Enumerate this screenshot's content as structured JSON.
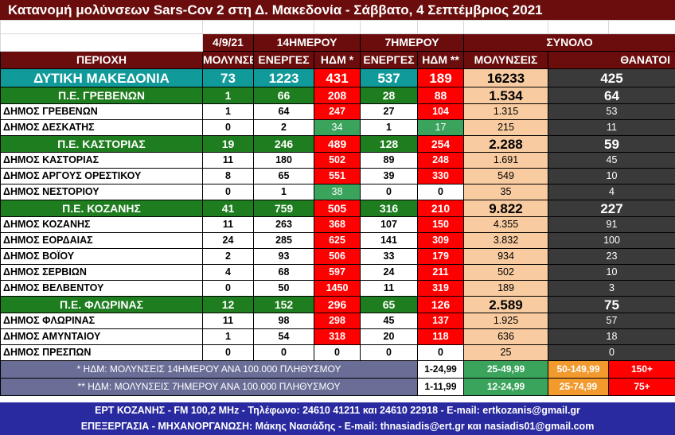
{
  "title": "Κατανομή μολύνσεων Sars-Cov 2 στη Δ. Μακεδονία - Σάββατο, 4 Σεπτέμβριος 2021",
  "header": {
    "date": "4/9/21",
    "days14": "14ΗΜΕΡΟΥ",
    "days7": "7ΗΜΕΡΟΥ",
    "total": "ΣΥΝΟΛΟ",
    "region": "ΠΕΡΙΟΧΗ",
    "infections": "ΜΟΛΥΝΣΕΙΣ",
    "active14": "ΕΝΕΡΓΕΣ",
    "hdm14": "ΗΔΜ *",
    "active7": "ΕΝΕΡΓΕΣ",
    "hdm7": "ΗΔΜ **",
    "total_infections": "ΜΟΛΥΝΣΕΙΣ",
    "deaths": "ΘΑΝΑΤΟΙ"
  },
  "rows": [
    {
      "type": "total",
      "name": "ΔΥΤΙΚΗ ΜΑΚΕΔΟΝΙΑ",
      "new": "73",
      "a14": "1223",
      "h14": "431",
      "a7": "537",
      "h7": "189",
      "tot": "16233",
      "dead": "425",
      "h14c": "red",
      "h7c": "red"
    },
    {
      "type": "pe",
      "name": "Π.Ε. ΓΡΕΒΕΝΩΝ",
      "new": "1",
      "a14": "66",
      "h14": "208",
      "a7": "28",
      "h7": "88",
      "tot": "1.534",
      "dead": "64",
      "h14c": "red",
      "h7c": "red"
    },
    {
      "type": "dim",
      "name": "ΔΗΜΟΣ ΓΡΕΒΕΝΩΝ",
      "new": "1",
      "a14": "64",
      "h14": "247",
      "a7": "27",
      "h7": "104",
      "tot": "1.315",
      "dead": "53",
      "h14c": "red",
      "h7c": "red"
    },
    {
      "type": "dim",
      "name": "ΔΗΜΟΣ ΔΕΣΚΑΤΗΣ",
      "new": "0",
      "a14": "2",
      "h14": "34",
      "a7": "1",
      "h7": "17",
      "tot": "215",
      "dead": "11",
      "h14c": "green",
      "h7c": "green"
    },
    {
      "type": "pe",
      "name": "Π.Ε. ΚΑΣΤΟΡΙΑΣ",
      "new": "19",
      "a14": "246",
      "h14": "489",
      "a7": "128",
      "h7": "254",
      "tot": "2.288",
      "dead": "59",
      "h14c": "red",
      "h7c": "red"
    },
    {
      "type": "dim",
      "name": "ΔΗΜΟΣ ΚΑΣΤΟΡΙΑΣ",
      "new": "11",
      "a14": "180",
      "h14": "502",
      "a7": "89",
      "h7": "248",
      "tot": "1.691",
      "dead": "45",
      "h14c": "red",
      "h7c": "red"
    },
    {
      "type": "dim",
      "name": "ΔΗΜΟΣ ΑΡΓΟΥΣ ΟΡΕΣΤΙΚΟΥ",
      "new": "8",
      "a14": "65",
      "h14": "551",
      "a7": "39",
      "h7": "330",
      "tot": "549",
      "dead": "10",
      "h14c": "red",
      "h7c": "red"
    },
    {
      "type": "dim",
      "name": "ΔΗΜΟΣ ΝΕΣΤΟΡΙΟΥ",
      "new": "0",
      "a14": "1",
      "h14": "38",
      "a7": "0",
      "h7": "0",
      "tot": "35",
      "dead": "4",
      "h14c": "green",
      "h7c": "white"
    },
    {
      "type": "pe",
      "name": "Π.Ε. ΚΟΖΑΝΗΣ",
      "new": "41",
      "a14": "759",
      "h14": "505",
      "a7": "316",
      "h7": "210",
      "tot": "9.822",
      "dead": "227",
      "h14c": "red",
      "h7c": "red"
    },
    {
      "type": "dim",
      "name": "ΔΗΜΟΣ ΚΟΖΑΝΗΣ",
      "new": "11",
      "a14": "263",
      "h14": "368",
      "a7": "107",
      "h7": "150",
      "tot": "4.355",
      "dead": "91",
      "h14c": "red",
      "h7c": "red"
    },
    {
      "type": "dim",
      "name": "ΔΗΜΟΣ ΕΟΡΔΑΙΑΣ",
      "new": "24",
      "a14": "285",
      "h14": "625",
      "a7": "141",
      "h7": "309",
      "tot": "3.832",
      "dead": "100",
      "h14c": "red",
      "h7c": "red"
    },
    {
      "type": "dim",
      "name": "ΔΗΜΟΣ ΒΟΪΟΥ",
      "new": "2",
      "a14": "93",
      "h14": "506",
      "a7": "33",
      "h7": "179",
      "tot": "934",
      "dead": "23",
      "h14c": "red",
      "h7c": "red"
    },
    {
      "type": "dim",
      "name": "ΔΗΜΟΣ ΣΕΡΒΙΩΝ",
      "new": "4",
      "a14": "68",
      "h14": "597",
      "a7": "24",
      "h7": "211",
      "tot": "502",
      "dead": "10",
      "h14c": "red",
      "h7c": "red"
    },
    {
      "type": "dim",
      "name": "ΔΗΜΟΣ ΒΕΛΒΕΝΤΟΥ",
      "new": "0",
      "a14": "50",
      "h14": "1450",
      "a7": "11",
      "h7": "319",
      "tot": "189",
      "dead": "3",
      "h14c": "red",
      "h7c": "red"
    },
    {
      "type": "pe",
      "name": "Π.Ε. ΦΛΩΡΙΝΑΣ",
      "new": "12",
      "a14": "152",
      "h14": "296",
      "a7": "65",
      "h7": "126",
      "tot": "2.589",
      "dead": "75",
      "h14c": "red",
      "h7c": "red"
    },
    {
      "type": "dim",
      "name": "ΔΗΜΟΣ ΦΛΩΡΙΝΑΣ",
      "new": "11",
      "a14": "98",
      "h14": "298",
      "a7": "45",
      "h7": "137",
      "tot": "1.925",
      "dead": "57",
      "h14c": "red",
      "h7c": "red"
    },
    {
      "type": "dim",
      "name": "ΔΗΜΟΣ ΑΜΥΝΤΑΙΟΥ",
      "new": "1",
      "a14": "54",
      "h14": "318",
      "a7": "20",
      "h7": "118",
      "tot": "636",
      "dead": "18",
      "h14c": "red",
      "h7c": "red"
    },
    {
      "type": "dim",
      "name": "ΔΗΜΟΣ ΠΡΕΣΠΩΝ",
      "new": "0",
      "a14": "0",
      "h14": "0",
      "a7": "0",
      "h7": "0",
      "tot": "25",
      "dead": "0",
      "h14c": "white",
      "h7c": "white"
    }
  ],
  "legend": [
    {
      "note": "* ΗΔΜ: ΜΟΛΥΝΣΕΙΣ 14ΗΜΕΡΟΥ ΑΝΑ 100.000 ΠΛΗΘΥΣΜΟΥ",
      "r1": "1-24,99",
      "r2": "25-49,99",
      "r3": "50-149,99",
      "r4": "150+"
    },
    {
      "note": "** ΗΔΜ: ΜΟΛΥΝΣΕΙΣ 7ΗΜΕΡΟΥ ΑΝΑ 100.000 ΠΛΗΘΥΣΜΟΥ",
      "r1": "1-11,99",
      "r2": "12-24,99",
      "r3": "25-74,99",
      "r4": "75+"
    }
  ],
  "footer": {
    "line1": "ΕΡΤ ΚΟΖΑΝΗΣ - FM 100,2 MHz - Τηλέφωνο:  24610 41211 και 24610 22918 - E-mail: ertkozanis@gmail.gr",
    "line2": "ΕΠΕΞΕΡΓΑΣΙΑ  -  ΜΗΧΑΝΟΡΓΑΝΩΣΗ: Μάκης Νασιάδης  -   E-mail: thnasiadis@ert.gr και nasiadis01@gmail.com"
  },
  "colors": {
    "title_bg": "#6b0d0d",
    "total_bg": "#119a9a",
    "pe_bg": "#1e7d1e",
    "red": "#ff0000",
    "green": "#3aa35c",
    "peach": "#f8cba0",
    "dark": "#3a3a3a",
    "footer_bg": "#2a2aa0"
  }
}
